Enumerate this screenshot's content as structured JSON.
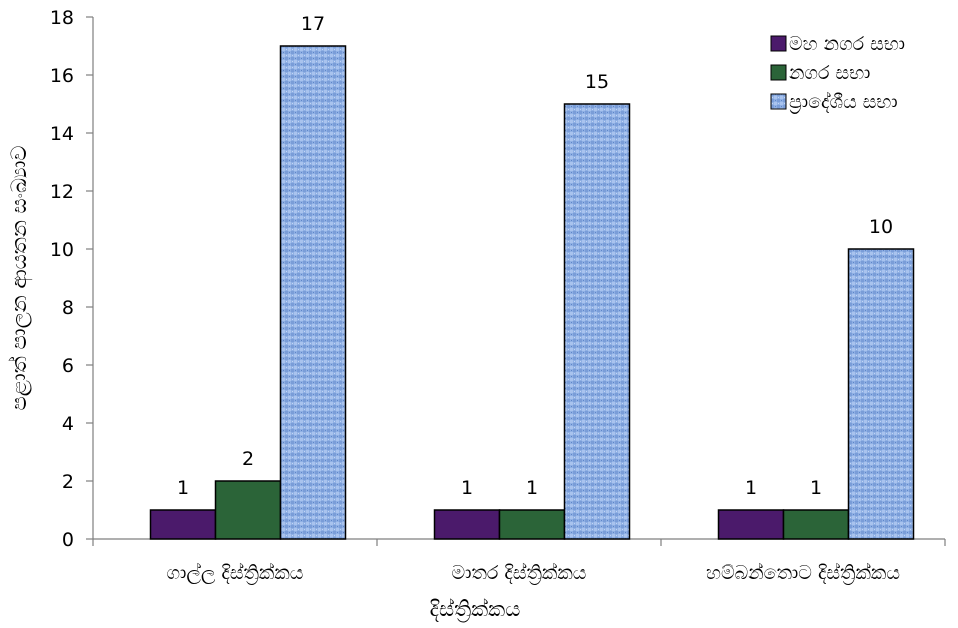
{
  "chart_data": {
    "type": "bar",
    "categories": [
      "ගාල්ල දිස්ත්‍රික්කය",
      "මාතර දිස්ත්‍රික්කය",
      "හම්බන්තොට දිස්ත්‍රික්කය"
    ],
    "series": [
      {
        "name": "මහ නගර සභා",
        "values": [
          1,
          1,
          1
        ],
        "color": "#4b1a6b"
      },
      {
        "name": "නගර සභා",
        "values": [
          2,
          1,
          1
        ],
        "color": "#2b6438"
      },
      {
        "name": "ප්‍රාදේශීය සභා",
        "values": [
          17,
          15,
          10
        ],
        "color": "#8fb0e4"
      }
    ],
    "xlabel": "දිස්ත්‍රික්කය",
    "ylabel": "පළාත් පාලන ආයතන සංඛ්‍යාව",
    "ylim": [
      0,
      18
    ],
    "yticks": [
      "0",
      "2",
      "4",
      "6",
      "8",
      "10",
      "12",
      "14",
      "16",
      "18"
    ],
    "grid": false,
    "legend_position": "top-right",
    "data_labels": true
  }
}
